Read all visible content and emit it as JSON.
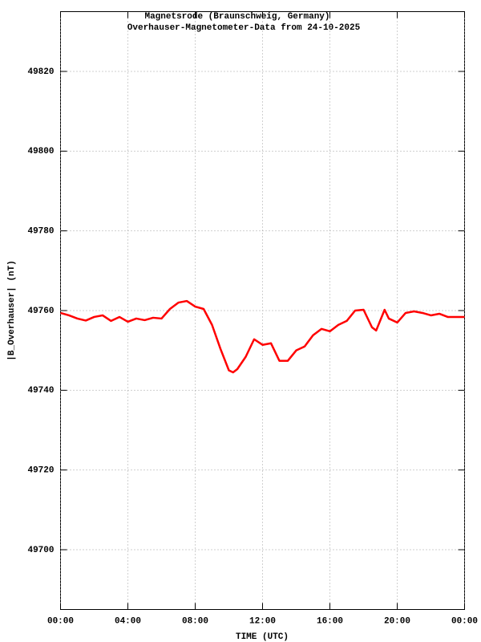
{
  "chart_data": {
    "type": "line",
    "title": "Magnetsrode (Braunschweig, Germany)",
    "subtitle": "Overhauser-Magnetometer-Data from 24-10-2025",
    "x_label": "TIME (UTC)",
    "y_label": "|B_Overhauser| (nT)",
    "x": [
      0,
      0.5,
      1,
      1.5,
      2,
      2.5,
      3,
      3.5,
      4,
      4.5,
      5,
      5.5,
      6,
      6.5,
      7,
      7.5,
      8,
      8.5,
      9,
      9.5,
      10,
      10.25,
      10.5,
      11,
      11.5,
      12,
      12.5,
      13,
      13.5,
      14,
      14.5,
      15,
      15.5,
      16,
      16.5,
      17,
      17.5,
      18,
      18.5,
      18.75,
      19.25,
      19.5,
      20,
      20.5,
      21,
      21.5,
      22,
      22.5,
      23,
      23.5,
      24
    ],
    "series": [
      {
        "color": "#ff0000",
        "values": [
          49759.4,
          49758.8,
          49758,
          49757.5,
          49758.4,
          49758.8,
          49757.4,
          49758.4,
          49757.2,
          49758,
          49757.6,
          49758.2,
          49758,
          49760.4,
          49762,
          49762.4,
          49761,
          49760.4,
          49756.4,
          49750.4,
          49745,
          49744.5,
          49745.3,
          49748.4,
          49752.8,
          49751.4,
          49751.8,
          49747.4,
          49747.4,
          49750,
          49751,
          49753.8,
          49755.4,
          49754.8,
          49756.4,
          49757.4,
          49760,
          49760.2,
          49755.8,
          49755,
          49760.2,
          49758,
          49757,
          49759.4,
          49759.8,
          49759.4,
          49758.8,
          49759.2,
          49758.4,
          49758.4,
          49758.4
        ]
      }
    ],
    "xlim": [
      0,
      24
    ],
    "xticks": [
      {
        "value": 0,
        "label": "00:00"
      },
      {
        "value": 4,
        "label": "04:00"
      },
      {
        "value": 8,
        "label": "08:00"
      },
      {
        "value": 12,
        "label": "12:00"
      },
      {
        "value": 16,
        "label": "16:00"
      },
      {
        "value": 20,
        "label": "20:00"
      },
      {
        "value": 24,
        "label": "00:00"
      }
    ],
    "ylim": [
      49685,
      49835
    ],
    "yticks": [
      49700,
      49720,
      49740,
      49760,
      49780,
      49800,
      49820
    ],
    "grid": true
  }
}
